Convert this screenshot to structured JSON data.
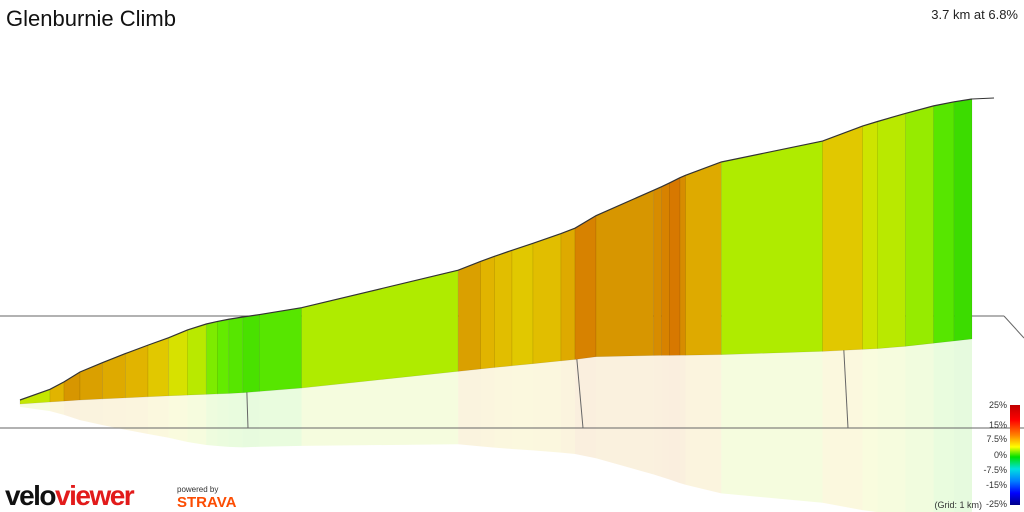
{
  "title": "Glenburnie Climb",
  "summary": "3.7 km at 6.8%",
  "logo": {
    "velo": "velo",
    "viewer": "viewer"
  },
  "powered": {
    "by": "powered by",
    "brand": "STRAVA"
  },
  "legend": {
    "labels": [
      "25%",
      "15%",
      "7.5%",
      "0%",
      "-7.5%",
      "-15%",
      "-25%"
    ],
    "grid_note": "(Grid: 1 km)"
  },
  "chart_data": {
    "type": "area",
    "title": "Glenburnie Climb",
    "subtitle": "3.7 km at 6.8%",
    "x_unit": "km",
    "total_distance_km": 3.7,
    "average_gradient_pct": 6.8,
    "grid_spacing_km": 1,
    "color_scale_pct": [
      25,
      15,
      7.5,
      0,
      -7.5,
      -15,
      -25
    ],
    "segments": [
      {
        "start_km": 0.0,
        "end_km": 0.15,
        "gradient_pct": 5.0
      },
      {
        "start_km": 0.15,
        "end_km": 0.22,
        "gradient_pct": 8.0
      },
      {
        "start_km": 0.22,
        "end_km": 0.3,
        "gradient_pct": 9.5
      },
      {
        "start_km": 0.3,
        "end_km": 0.38,
        "gradient_pct": 9.0
      },
      {
        "start_km": 0.38,
        "end_km": 0.46,
        "gradient_pct": 8.5
      },
      {
        "start_km": 0.46,
        "end_km": 0.54,
        "gradient_pct": 8.0
      },
      {
        "start_km": 0.54,
        "end_km": 0.62,
        "gradient_pct": 7.0
      },
      {
        "start_km": 0.62,
        "end_km": 0.72,
        "gradient_pct": 6.0
      },
      {
        "start_km": 0.72,
        "end_km": 0.82,
        "gradient_pct": 4.5
      },
      {
        "start_km": 0.82,
        "end_km": 0.88,
        "gradient_pct": 3.0
      },
      {
        "start_km": 0.88,
        "end_km": 0.94,
        "gradient_pct": 2.5
      },
      {
        "start_km": 0.94,
        "end_km": 1.01,
        "gradient_pct": 2.0
      },
      {
        "start_km": 1.01,
        "end_km": 1.07,
        "gradient_pct": 1.5
      },
      {
        "start_km": 1.07,
        "end_km": 1.22,
        "gradient_pct": 2.0
      },
      {
        "start_km": 1.22,
        "end_km": 1.67,
        "gradient_pct": 4.0
      },
      {
        "start_km": 1.67,
        "end_km": 1.73,
        "gradient_pct": 9.0
      },
      {
        "start_km": 1.73,
        "end_km": 1.77,
        "gradient_pct": 8.0
      },
      {
        "start_km": 1.77,
        "end_km": 1.82,
        "gradient_pct": 7.5
      },
      {
        "start_km": 1.82,
        "end_km": 1.88,
        "gradient_pct": 7.0
      },
      {
        "start_km": 1.88,
        "end_km": 1.96,
        "gradient_pct": 7.5
      },
      {
        "start_km": 1.96,
        "end_km": 2.0,
        "gradient_pct": 8.5
      },
      {
        "start_km": 2.0,
        "end_km": 2.08,
        "gradient_pct": 10.5
      },
      {
        "start_km": 2.08,
        "end_km": 2.3,
        "gradient_pct": 9.5
      },
      {
        "start_km": 2.3,
        "end_km": 2.33,
        "gradient_pct": 10.0
      },
      {
        "start_km": 2.33,
        "end_km": 2.36,
        "gradient_pct": 10.5
      },
      {
        "start_km": 2.36,
        "end_km": 2.4,
        "gradient_pct": 11.0
      },
      {
        "start_km": 2.4,
        "end_km": 2.42,
        "gradient_pct": 10.0
      },
      {
        "start_km": 2.42,
        "end_km": 2.55,
        "gradient_pct": 8.5
      },
      {
        "start_km": 2.55,
        "end_km": 2.93,
        "gradient_pct": 4.0
      },
      {
        "start_km": 2.93,
        "end_km": 3.09,
        "gradient_pct": 7.0
      },
      {
        "start_km": 3.09,
        "end_km": 3.15,
        "gradient_pct": 5.5
      },
      {
        "start_km": 3.15,
        "end_km": 3.26,
        "gradient_pct": 4.5
      },
      {
        "start_km": 3.26,
        "end_km": 3.37,
        "gradient_pct": 3.5
      },
      {
        "start_km": 3.37,
        "end_km": 3.45,
        "gradient_pct": 2.0
      },
      {
        "start_km": 3.45,
        "end_km": 3.52,
        "gradient_pct": 1.0
      }
    ]
  },
  "colors": {
    "background": "#ffffff",
    "profile_outline": "#333333",
    "grid_line": "#666666",
    "logo_red": "#e21b1b",
    "strava_orange": "#fc4c02"
  }
}
